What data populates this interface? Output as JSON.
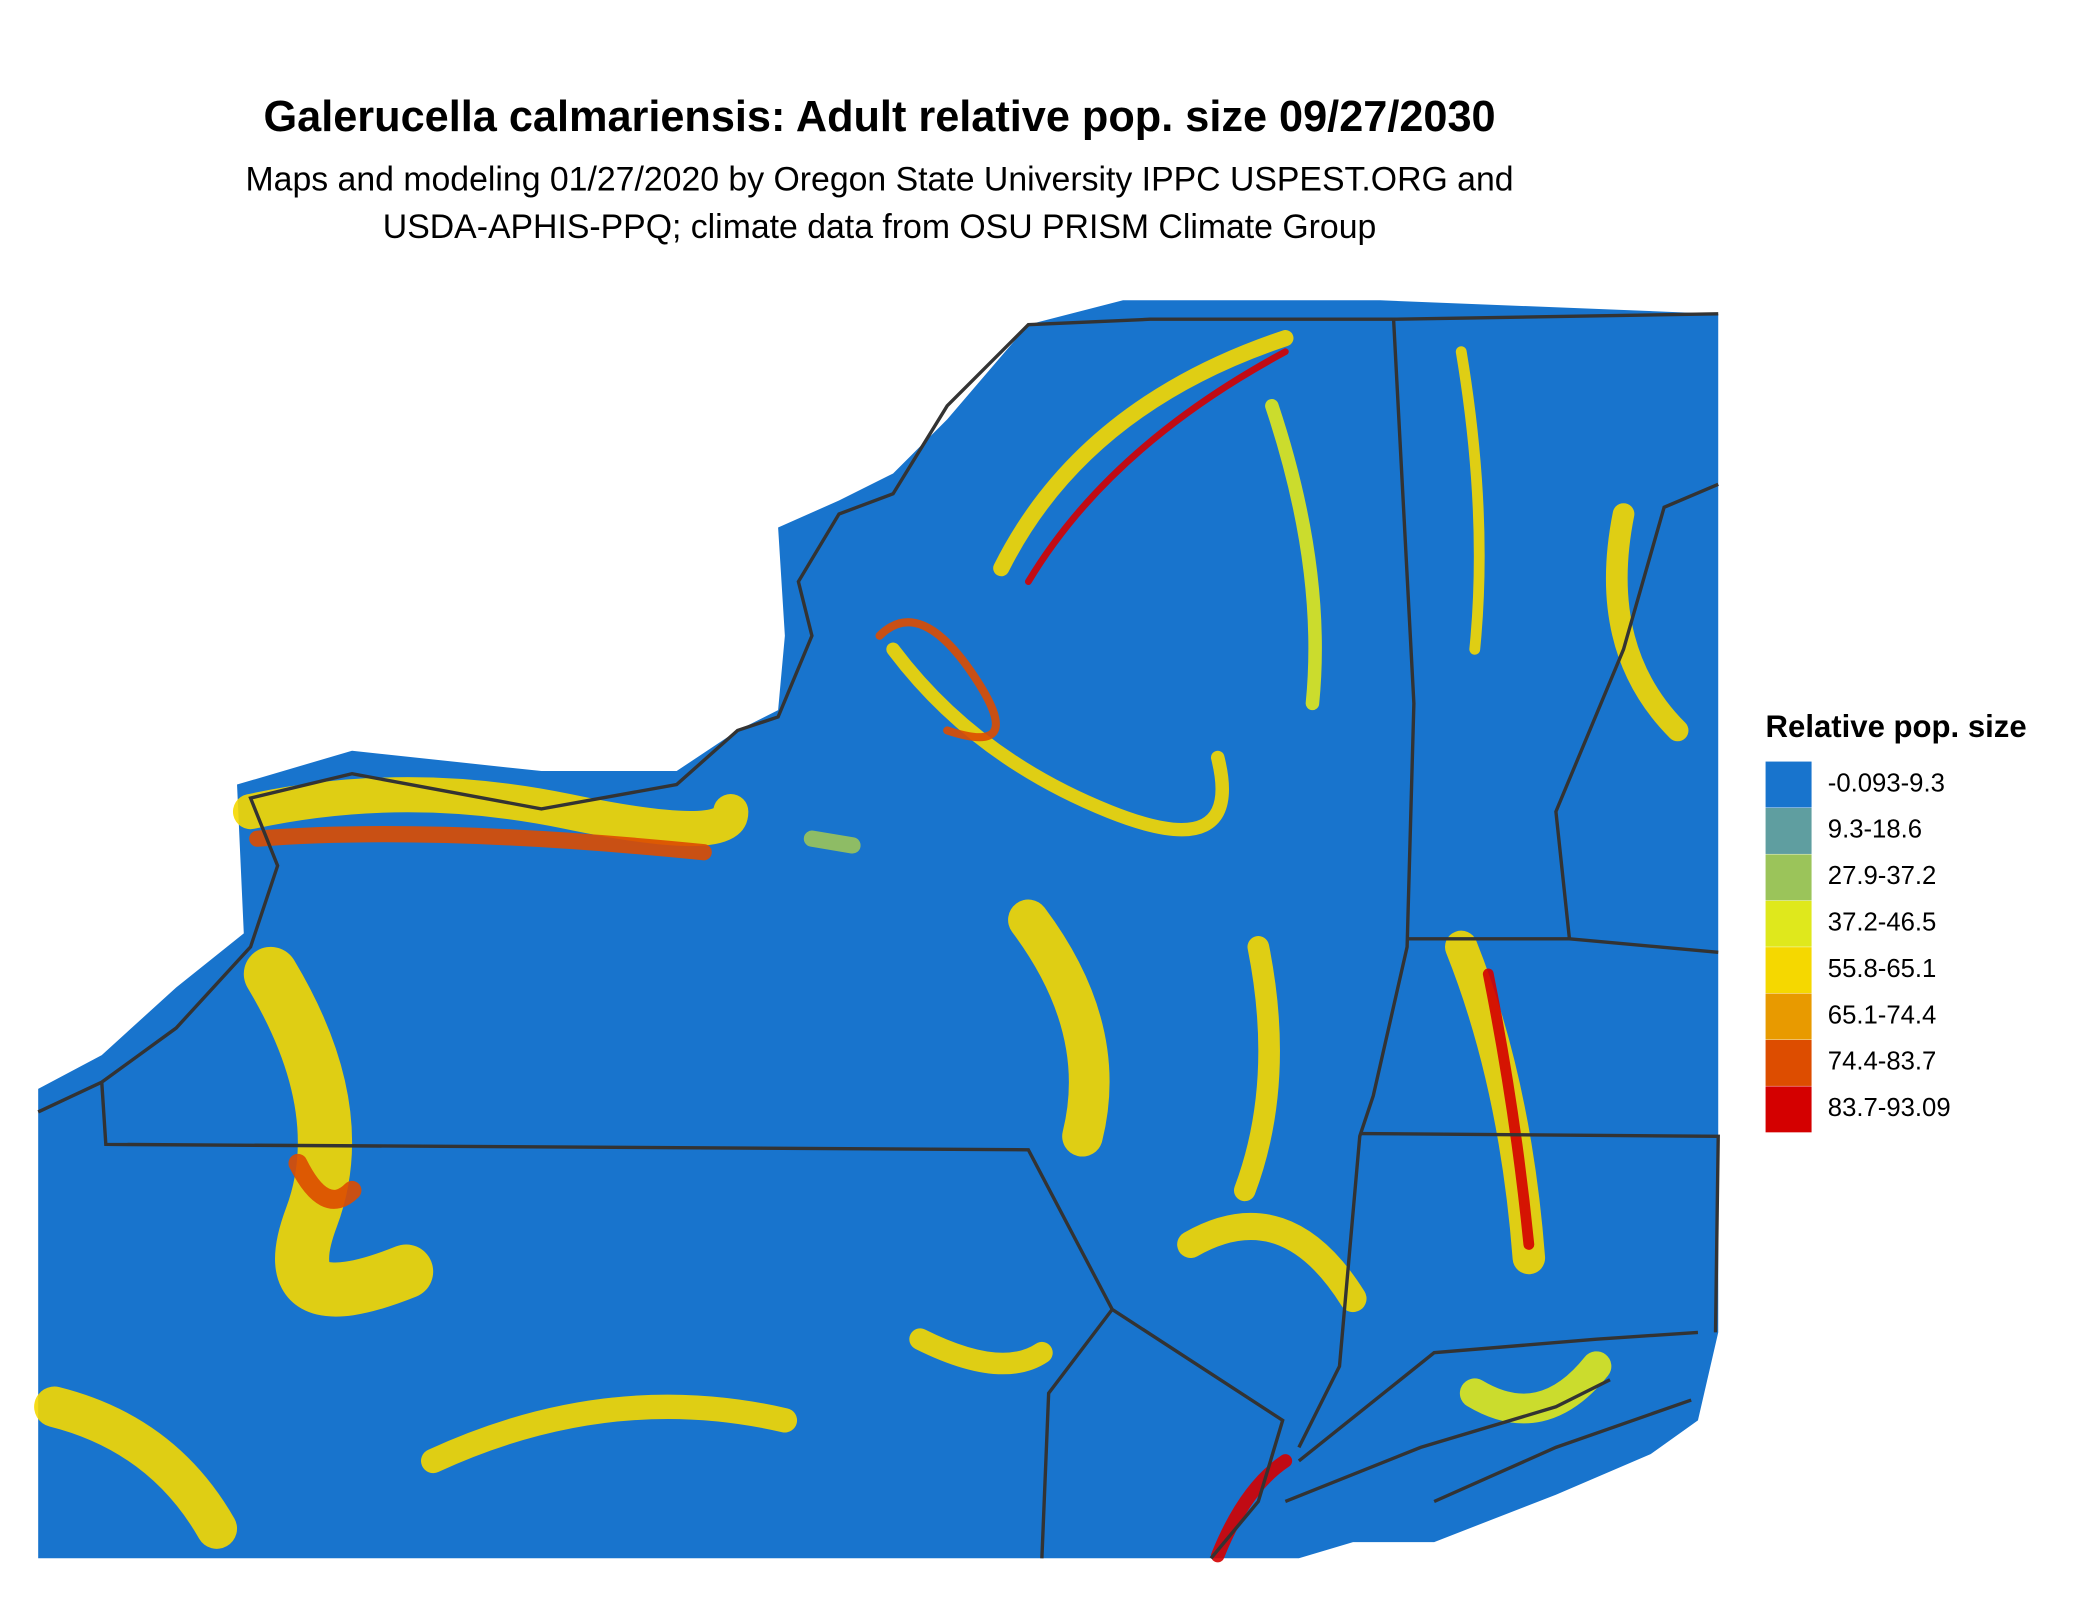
{
  "title": "Galerucella calmariensis: Adult relative pop. size 09/27/2030",
  "subtitle": [
    "Maps and modeling 01/27/2020 by Oregon State University IPPC USPEST.ORG and",
    "USDA-APHIS-PPQ; climate data from OSU PRISM Climate Group"
  ],
  "legend": {
    "title": "Relative pop. size",
    "items": [
      {
        "label": "-0.093-9.3",
        "color": "#1874cd"
      },
      {
        "label": "9.3-18.6",
        "color": "#5f9ea0"
      },
      {
        "label": "27.9-37.2",
        "color": "#9bc45a"
      },
      {
        "label": "37.2-46.5",
        "color": "#dfe81c"
      },
      {
        "label": "55.8-65.1",
        "color": "#f5d800"
      },
      {
        "label": "65.1-74.4",
        "color": "#e89a00"
      },
      {
        "label": "74.4-83.7",
        "color": "#dd4d00"
      },
      {
        "label": "83.7-93.09",
        "color": "#d40000"
      }
    ]
  }
}
